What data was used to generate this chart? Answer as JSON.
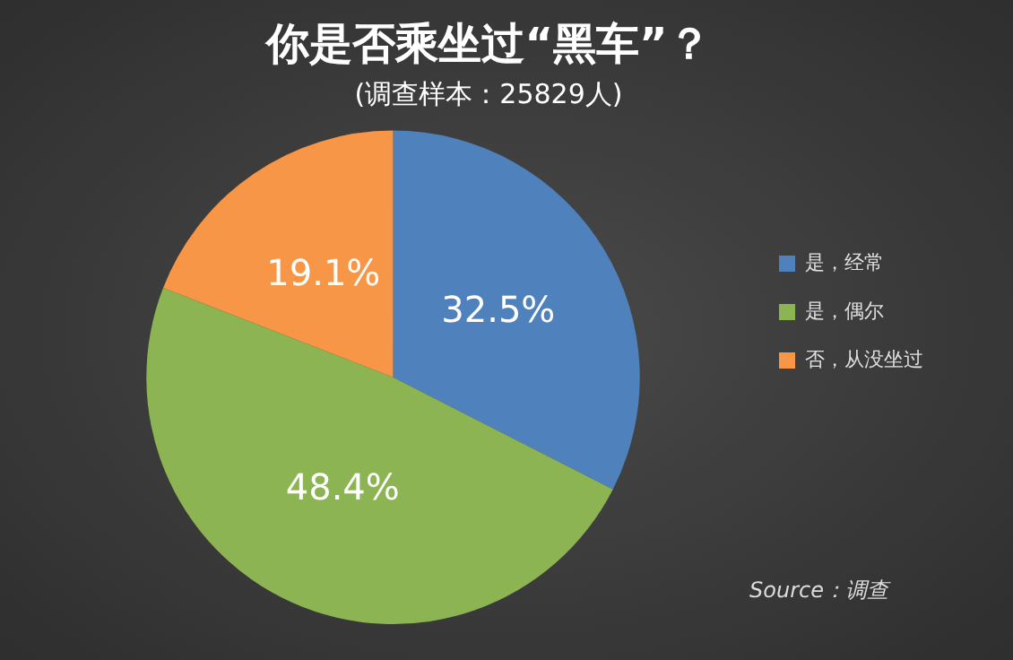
{
  "chart_data": {
    "type": "pie",
    "title": "你是否乘坐过“黑车”？",
    "subtitle": "(调查样本：25829人)",
    "categories": [
      "是，经常",
      "是，偶尔",
      "否，从没坐过"
    ],
    "values": [
      32.5,
      48.4,
      19.1
    ],
    "colors": [
      "#4f81bd",
      "#8cb453",
      "#f79646"
    ],
    "value_labels": [
      "32.5%",
      "48.4%",
      "19.1%"
    ],
    "legend": "right",
    "annotations": [
      "Source：调查"
    ]
  }
}
